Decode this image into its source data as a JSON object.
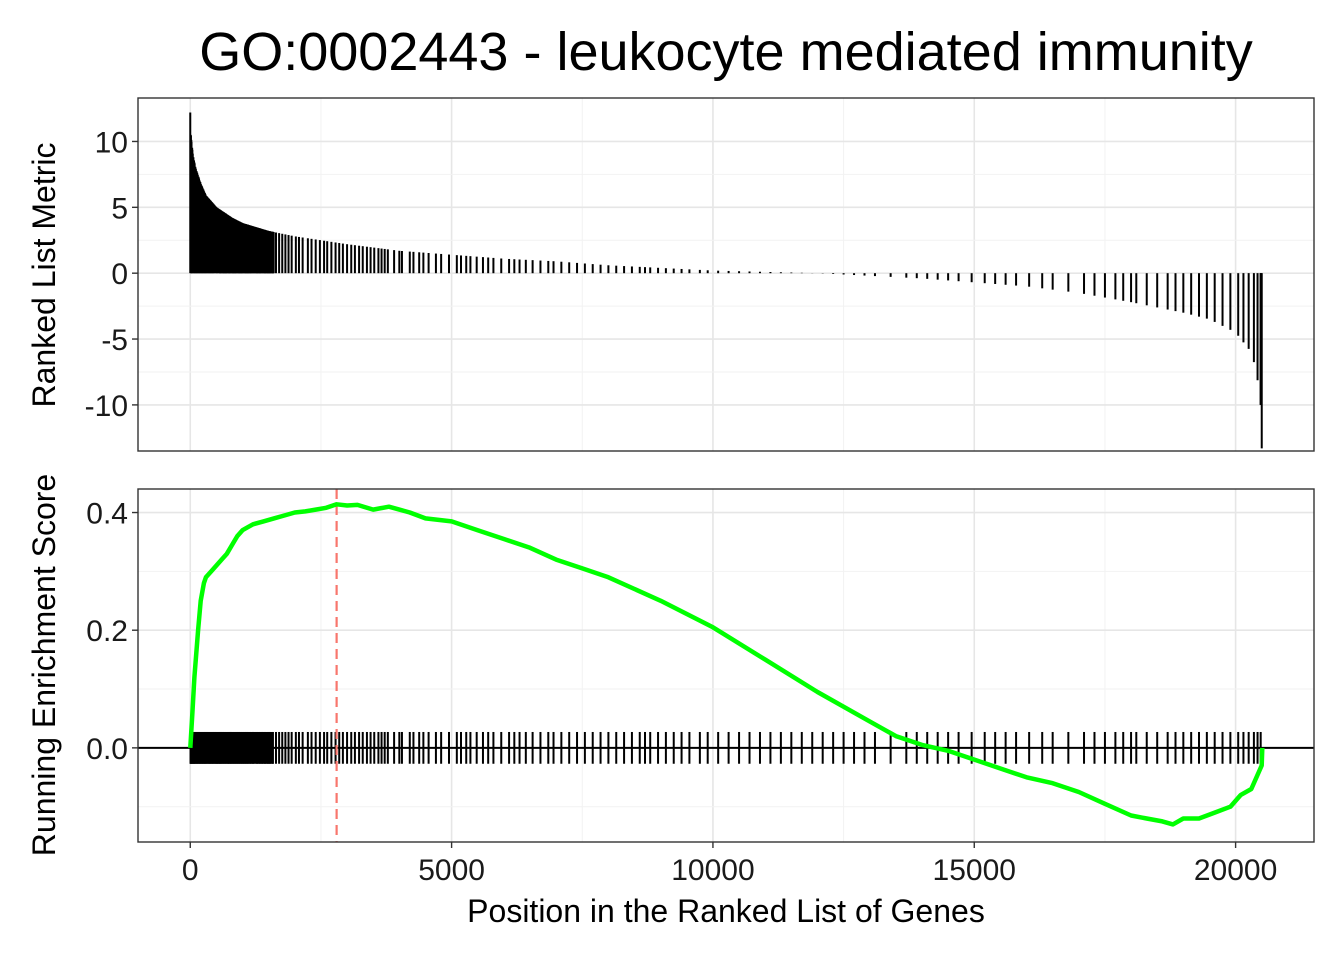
{
  "chart_data": {
    "type": "line",
    "title": "GO:0002443 - leukocyte mediated immunity",
    "xlabel": "Position in the Ranked List of Genes",
    "x_ticks": [
      0,
      5000,
      10000,
      15000,
      20000
    ],
    "xlim": [
      -1000,
      21500
    ],
    "n_genes": 20500,
    "top_panel": {
      "type": "bar",
      "ylabel": "Ranked List Metric",
      "ylim": [
        -13.5,
        13.3
      ],
      "y_ticks": [
        10,
        5,
        0,
        -5,
        -10
      ],
      "y_tick_labels": [
        "10",
        "5",
        "0",
        "-5",
        "-10"
      ],
      "metric_curve": [
        [
          0,
          12.2
        ],
        [
          10,
          10.5
        ],
        [
          50,
          9.0
        ],
        [
          100,
          8.0
        ],
        [
          200,
          6.8
        ],
        [
          300,
          5.9
        ],
        [
          500,
          5.0
        ],
        [
          800,
          4.2
        ],
        [
          1000,
          3.8
        ],
        [
          1500,
          3.2
        ],
        [
          2000,
          2.8
        ],
        [
          3000,
          2.2
        ],
        [
          4000,
          1.7
        ],
        [
          5000,
          1.4
        ],
        [
          6000,
          1.1
        ],
        [
          7000,
          0.9
        ],
        [
          8000,
          0.6
        ],
        [
          9000,
          0.4
        ],
        [
          10000,
          0.2
        ],
        [
          11000,
          0.1
        ],
        [
          12000,
          0.0
        ],
        [
          13000,
          -0.2
        ],
        [
          14000,
          -0.4
        ],
        [
          15000,
          -0.7
        ],
        [
          16000,
          -1.0
        ],
        [
          17000,
          -1.5
        ],
        [
          18000,
          -2.2
        ],
        [
          19000,
          -3.0
        ],
        [
          19500,
          -3.5
        ],
        [
          20000,
          -4.5
        ],
        [
          20300,
          -6.0
        ],
        [
          20400,
          -7.5
        ],
        [
          20480,
          -10.0
        ],
        [
          20500,
          -13.3
        ]
      ]
    },
    "bottom_panel": {
      "ylabel": "Running Enrichment Score",
      "ylim": [
        -0.16,
        0.44
      ],
      "y_ticks": [
        0.0,
        0.2,
        0.4
      ],
      "y_tick_labels": [
        "0.0",
        "0.2",
        "0.4"
      ],
      "series": [
        {
          "color": "#00ff00",
          "x": [
            0,
            40,
            80,
            150,
            200,
            260,
            300,
            400,
            500,
            600,
            700,
            800,
            900,
            1000,
            1100,
            1200,
            1400,
            1600,
            1800,
            2000,
            2200,
            2400,
            2600,
            2800,
            3000,
            3200,
            3500,
            3800,
            4000,
            4200,
            4500,
            5000,
            5500,
            6000,
            6500,
            7000,
            7500,
            8000,
            9000,
            10000,
            11000,
            12000,
            13000,
            13500,
            14000,
            14500,
            15000,
            15500,
            16000,
            16500,
            17000,
            17500,
            18000,
            18300,
            18600,
            18800,
            19000,
            19300,
            19600,
            19900,
            20100,
            20300,
            20450,
            20500,
            20510
          ],
          "y": [
            0.0,
            0.06,
            0.12,
            0.2,
            0.25,
            0.28,
            0.29,
            0.3,
            0.31,
            0.32,
            0.33,
            0.345,
            0.36,
            0.37,
            0.375,
            0.38,
            0.385,
            0.39,
            0.395,
            0.4,
            0.402,
            0.405,
            0.408,
            0.414,
            0.412,
            0.413,
            0.405,
            0.41,
            0.405,
            0.4,
            0.39,
            0.385,
            0.37,
            0.355,
            0.34,
            0.32,
            0.305,
            0.29,
            0.25,
            0.205,
            0.15,
            0.095,
            0.045,
            0.02,
            0.005,
            -0.005,
            -0.02,
            -0.035,
            -0.05,
            -0.06,
            -0.075,
            -0.095,
            -0.115,
            -0.12,
            -0.125,
            -0.13,
            -0.12,
            -0.12,
            -0.11,
            -0.1,
            -0.08,
            -0.07,
            -0.04,
            -0.03,
            0.0
          ]
        }
      ],
      "max_es_position": 2800,
      "max_es_line_color": "#f8766d",
      "hit_positions": [
        10,
        20,
        40,
        60,
        80,
        100,
        130,
        160,
        190,
        220,
        250,
        280,
        310,
        350,
        380,
        410,
        440,
        480,
        510,
        540,
        570,
        600,
        640,
        680,
        720,
        750,
        780,
        820,
        860,
        900,
        940,
        980,
        1020,
        1060,
        1100,
        1150,
        1200,
        1280,
        1330,
        1380,
        1430,
        1480,
        1520,
        1580,
        1640,
        1700,
        1760,
        1820,
        1880,
        1940,
        2020,
        2080,
        2150,
        2250,
        2320,
        2400,
        2480,
        2560,
        2620,
        2700,
        2780,
        2850,
        2920,
        3000,
        3080,
        3150,
        3230,
        3300,
        3380,
        3450,
        3520,
        3600,
        3660,
        3720,
        3780,
        3900,
        4000,
        4050,
        4200,
        4270,
        4380,
        4460,
        4560,
        4700,
        4800,
        4950,
        5100,
        5180,
        5280,
        5360,
        5480,
        5600,
        5700,
        5800,
        5950,
        6100,
        6200,
        6300,
        6420,
        6550,
        6700,
        6850,
        6950,
        7100,
        7250,
        7400,
        7550,
        7700,
        7850,
        8000,
        8150,
        8300,
        8450,
        8600,
        8700,
        8800,
        8950,
        9100,
        9250,
        9400,
        9550,
        9750,
        9900,
        10100,
        10300,
        10500,
        10700,
        10900,
        11100,
        11300,
        11500,
        11700,
        11900,
        12100,
        12300,
        12500,
        12700,
        12900,
        13100,
        13400,
        13700,
        13900,
        14100,
        14300,
        14500,
        14700,
        14950,
        15200,
        15400,
        15600,
        15800,
        16050,
        16300,
        16500,
        16800,
        17100,
        17300,
        17500,
        17700,
        17850,
        18000,
        18100,
        18300,
        18500,
        18700,
        18850,
        19000,
        19150,
        19300,
        19450,
        19600,
        19750,
        19900,
        20050,
        20150,
        20250,
        20350,
        20420,
        20480
      ]
    }
  }
}
